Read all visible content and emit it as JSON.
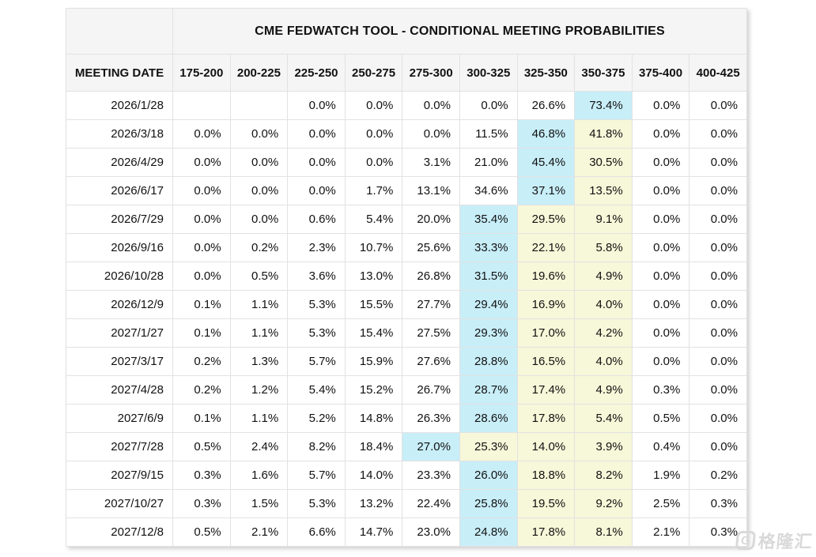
{
  "chart_data": {
    "type": "table",
    "title": "CME FEDWATCH TOOL - CONDITIONAL MEETING PROBABILITIES",
    "row_header": "MEETING DATE",
    "columns": [
      "175-200",
      "200-225",
      "225-250",
      "250-275",
      "275-300",
      "300-325",
      "325-350",
      "350-375",
      "375-400",
      "400-425"
    ],
    "rows": [
      {
        "date": "2026/1/28",
        "values": [
          "",
          "",
          "0.0%",
          "0.0%",
          "0.0%",
          "0.0%",
          "26.6%",
          "73.4%",
          "0.0%",
          "0.0%"
        ],
        "cyan_col": 7,
        "yellow_cols": []
      },
      {
        "date": "2026/3/18",
        "values": [
          "0.0%",
          "0.0%",
          "0.0%",
          "0.0%",
          "0.0%",
          "11.5%",
          "46.8%",
          "41.8%",
          "0.0%",
          "0.0%"
        ],
        "cyan_col": 6,
        "yellow_cols": [
          7
        ]
      },
      {
        "date": "2026/4/29",
        "values": [
          "0.0%",
          "0.0%",
          "0.0%",
          "0.0%",
          "3.1%",
          "21.0%",
          "45.4%",
          "30.5%",
          "0.0%",
          "0.0%"
        ],
        "cyan_col": 6,
        "yellow_cols": [
          7
        ]
      },
      {
        "date": "2026/6/17",
        "values": [
          "0.0%",
          "0.0%",
          "0.0%",
          "1.7%",
          "13.1%",
          "34.6%",
          "37.1%",
          "13.5%",
          "0.0%",
          "0.0%"
        ],
        "cyan_col": 6,
        "yellow_cols": [
          7
        ]
      },
      {
        "date": "2026/7/29",
        "values": [
          "0.0%",
          "0.0%",
          "0.6%",
          "5.4%",
          "20.0%",
          "35.4%",
          "29.5%",
          "9.1%",
          "0.0%",
          "0.0%"
        ],
        "cyan_col": 5,
        "yellow_cols": [
          6,
          7
        ]
      },
      {
        "date": "2026/9/16",
        "values": [
          "0.0%",
          "0.2%",
          "2.3%",
          "10.7%",
          "25.6%",
          "33.3%",
          "22.1%",
          "5.8%",
          "0.0%",
          "0.0%"
        ],
        "cyan_col": 5,
        "yellow_cols": [
          6,
          7
        ]
      },
      {
        "date": "2026/10/28",
        "values": [
          "0.0%",
          "0.5%",
          "3.6%",
          "13.0%",
          "26.8%",
          "31.5%",
          "19.6%",
          "4.9%",
          "0.0%",
          "0.0%"
        ],
        "cyan_col": 5,
        "yellow_cols": [
          6,
          7
        ]
      },
      {
        "date": "2026/12/9",
        "values": [
          "0.1%",
          "1.1%",
          "5.3%",
          "15.5%",
          "27.7%",
          "29.4%",
          "16.9%",
          "4.0%",
          "0.0%",
          "0.0%"
        ],
        "cyan_col": 5,
        "yellow_cols": [
          6,
          7
        ]
      },
      {
        "date": "2027/1/27",
        "values": [
          "0.1%",
          "1.1%",
          "5.3%",
          "15.4%",
          "27.5%",
          "29.3%",
          "17.0%",
          "4.2%",
          "0.0%",
          "0.0%"
        ],
        "cyan_col": 5,
        "yellow_cols": [
          6,
          7
        ]
      },
      {
        "date": "2027/3/17",
        "values": [
          "0.2%",
          "1.3%",
          "5.7%",
          "15.9%",
          "27.6%",
          "28.8%",
          "16.5%",
          "4.0%",
          "0.0%",
          "0.0%"
        ],
        "cyan_col": 5,
        "yellow_cols": [
          6,
          7
        ]
      },
      {
        "date": "2027/4/28",
        "values": [
          "0.2%",
          "1.2%",
          "5.4%",
          "15.2%",
          "26.7%",
          "28.7%",
          "17.4%",
          "4.9%",
          "0.3%",
          "0.0%"
        ],
        "cyan_col": 5,
        "yellow_cols": [
          6,
          7
        ]
      },
      {
        "date": "2027/6/9",
        "values": [
          "0.1%",
          "1.1%",
          "5.2%",
          "14.8%",
          "26.3%",
          "28.6%",
          "17.8%",
          "5.4%",
          "0.5%",
          "0.0%"
        ],
        "cyan_col": 5,
        "yellow_cols": [
          6,
          7
        ]
      },
      {
        "date": "2027/7/28",
        "values": [
          "0.5%",
          "2.4%",
          "8.2%",
          "18.4%",
          "27.0%",
          "25.3%",
          "14.0%",
          "3.9%",
          "0.4%",
          "0.0%"
        ],
        "cyan_col": 4,
        "yellow_cols": [
          5,
          6,
          7
        ]
      },
      {
        "date": "2027/9/15",
        "values": [
          "0.3%",
          "1.6%",
          "5.7%",
          "14.0%",
          "23.3%",
          "26.0%",
          "18.8%",
          "8.2%",
          "1.9%",
          "0.2%"
        ],
        "cyan_col": 5,
        "yellow_cols": [
          6,
          7
        ]
      },
      {
        "date": "2027/10/27",
        "values": [
          "0.3%",
          "1.5%",
          "5.3%",
          "13.2%",
          "22.4%",
          "25.8%",
          "19.5%",
          "9.2%",
          "2.5%",
          "0.3%"
        ],
        "cyan_col": 5,
        "yellow_cols": [
          6,
          7
        ]
      },
      {
        "date": "2027/12/8",
        "values": [
          "0.5%",
          "2.1%",
          "6.6%",
          "14.7%",
          "23.0%",
          "24.8%",
          "17.8%",
          "8.1%",
          "2.1%",
          "0.3%"
        ],
        "cyan_col": 5,
        "yellow_cols": [
          6,
          7
        ]
      }
    ],
    "layout_hints": {
      "grid": "on",
      "highlight_colors": {
        "cyan": "#c8eef8",
        "yellow": "#f7f7d9"
      }
    }
  },
  "colors": {
    "cyan": "#c8eef8",
    "yellow": "#f7f7d9",
    "header_bg": "#f5f5f5",
    "grid": "#e2e2e2",
    "text": "#111111",
    "watermark": "#d9d9d9"
  },
  "watermark": {
    "icon_letter": "G",
    "text": "格隆汇"
  }
}
